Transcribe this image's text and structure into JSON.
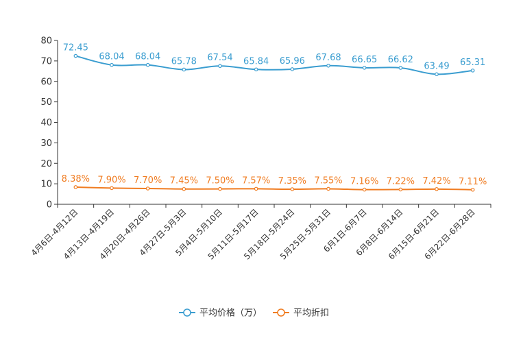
{
  "chart_data": {
    "type": "line",
    "categories": [
      "4月6日-4月12日",
      "4月13日-4月19日",
      "4月20日-4月26日",
      "4月27日-5月3日",
      "5月4日-5月10日",
      "5月11日-5月17日",
      "5月18日-5月24日",
      "5月25日-5月31日",
      "6月1日-6月7日",
      "6月8日-6月14日",
      "6月15日-6月21日",
      "6月22日-6月28日"
    ],
    "series": [
      {
        "name": "平均价格（万）",
        "color": "#3a9dd0",
        "values": [
          72.45,
          68.04,
          68.04,
          65.78,
          67.54,
          65.84,
          65.96,
          67.68,
          66.65,
          66.62,
          63.49,
          65.31
        ],
        "labels": [
          "72.45",
          "68.04",
          "68.04",
          "65.78",
          "67.54",
          "65.84",
          "65.96",
          "67.68",
          "66.65",
          "66.62",
          "63.49",
          "65.31"
        ]
      },
      {
        "name": "平均折扣",
        "color": "#f07c21",
        "values": [
          8.38,
          7.9,
          7.7,
          7.45,
          7.5,
          7.57,
          7.35,
          7.55,
          7.16,
          7.22,
          7.42,
          7.11
        ],
        "labels": [
          "8.38%",
          "7.90%",
          "7.70%",
          "7.45%",
          "7.50%",
          "7.57%",
          "7.35%",
          "7.55%",
          "7.16%",
          "7.22%",
          "7.42%",
          "7.11%"
        ]
      }
    ],
    "yticks": [
      "0",
      "10",
      "20",
      "30",
      "40",
      "50",
      "60",
      "70",
      "80"
    ],
    "ylim": [
      0,
      80
    ],
    "title": "",
    "xlabel": "",
    "ylabel": "",
    "legend_position": "bottom-center"
  }
}
